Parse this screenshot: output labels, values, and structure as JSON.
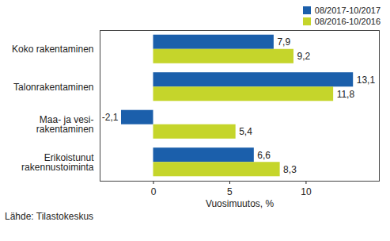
{
  "chart_data": {
    "type": "bar",
    "orientation": "horizontal",
    "categories": [
      "Koko rakentaminen",
      "Talonrakentaminen",
      "Maa- ja vesi-\nrakentaminen",
      "Erikoistunut\nrakennustoiminta"
    ],
    "series": [
      {
        "name": "08/2017-10/2017",
        "color": "#1b5fab",
        "values": [
          7.9,
          13.1,
          -2.1,
          6.6
        ],
        "value_labels": [
          "7,9",
          "13,1",
          "-2,1",
          "6,6"
        ]
      },
      {
        "name": "08/2016-10/2016",
        "color": "#c5d52b",
        "values": [
          9.2,
          11.8,
          5.4,
          8.3
        ],
        "value_labels": [
          "9,2",
          "11,8",
          "5,4",
          "8,3"
        ]
      }
    ],
    "xlabel": "Vuosimuutos, %",
    "xlim": [
      -3.5,
      14.8
    ],
    "xticks": [
      0,
      5,
      10
    ],
    "data_labels": true,
    "grid": false,
    "legend": "top-right",
    "caption": "Lähde: Tilastokeskus"
  }
}
